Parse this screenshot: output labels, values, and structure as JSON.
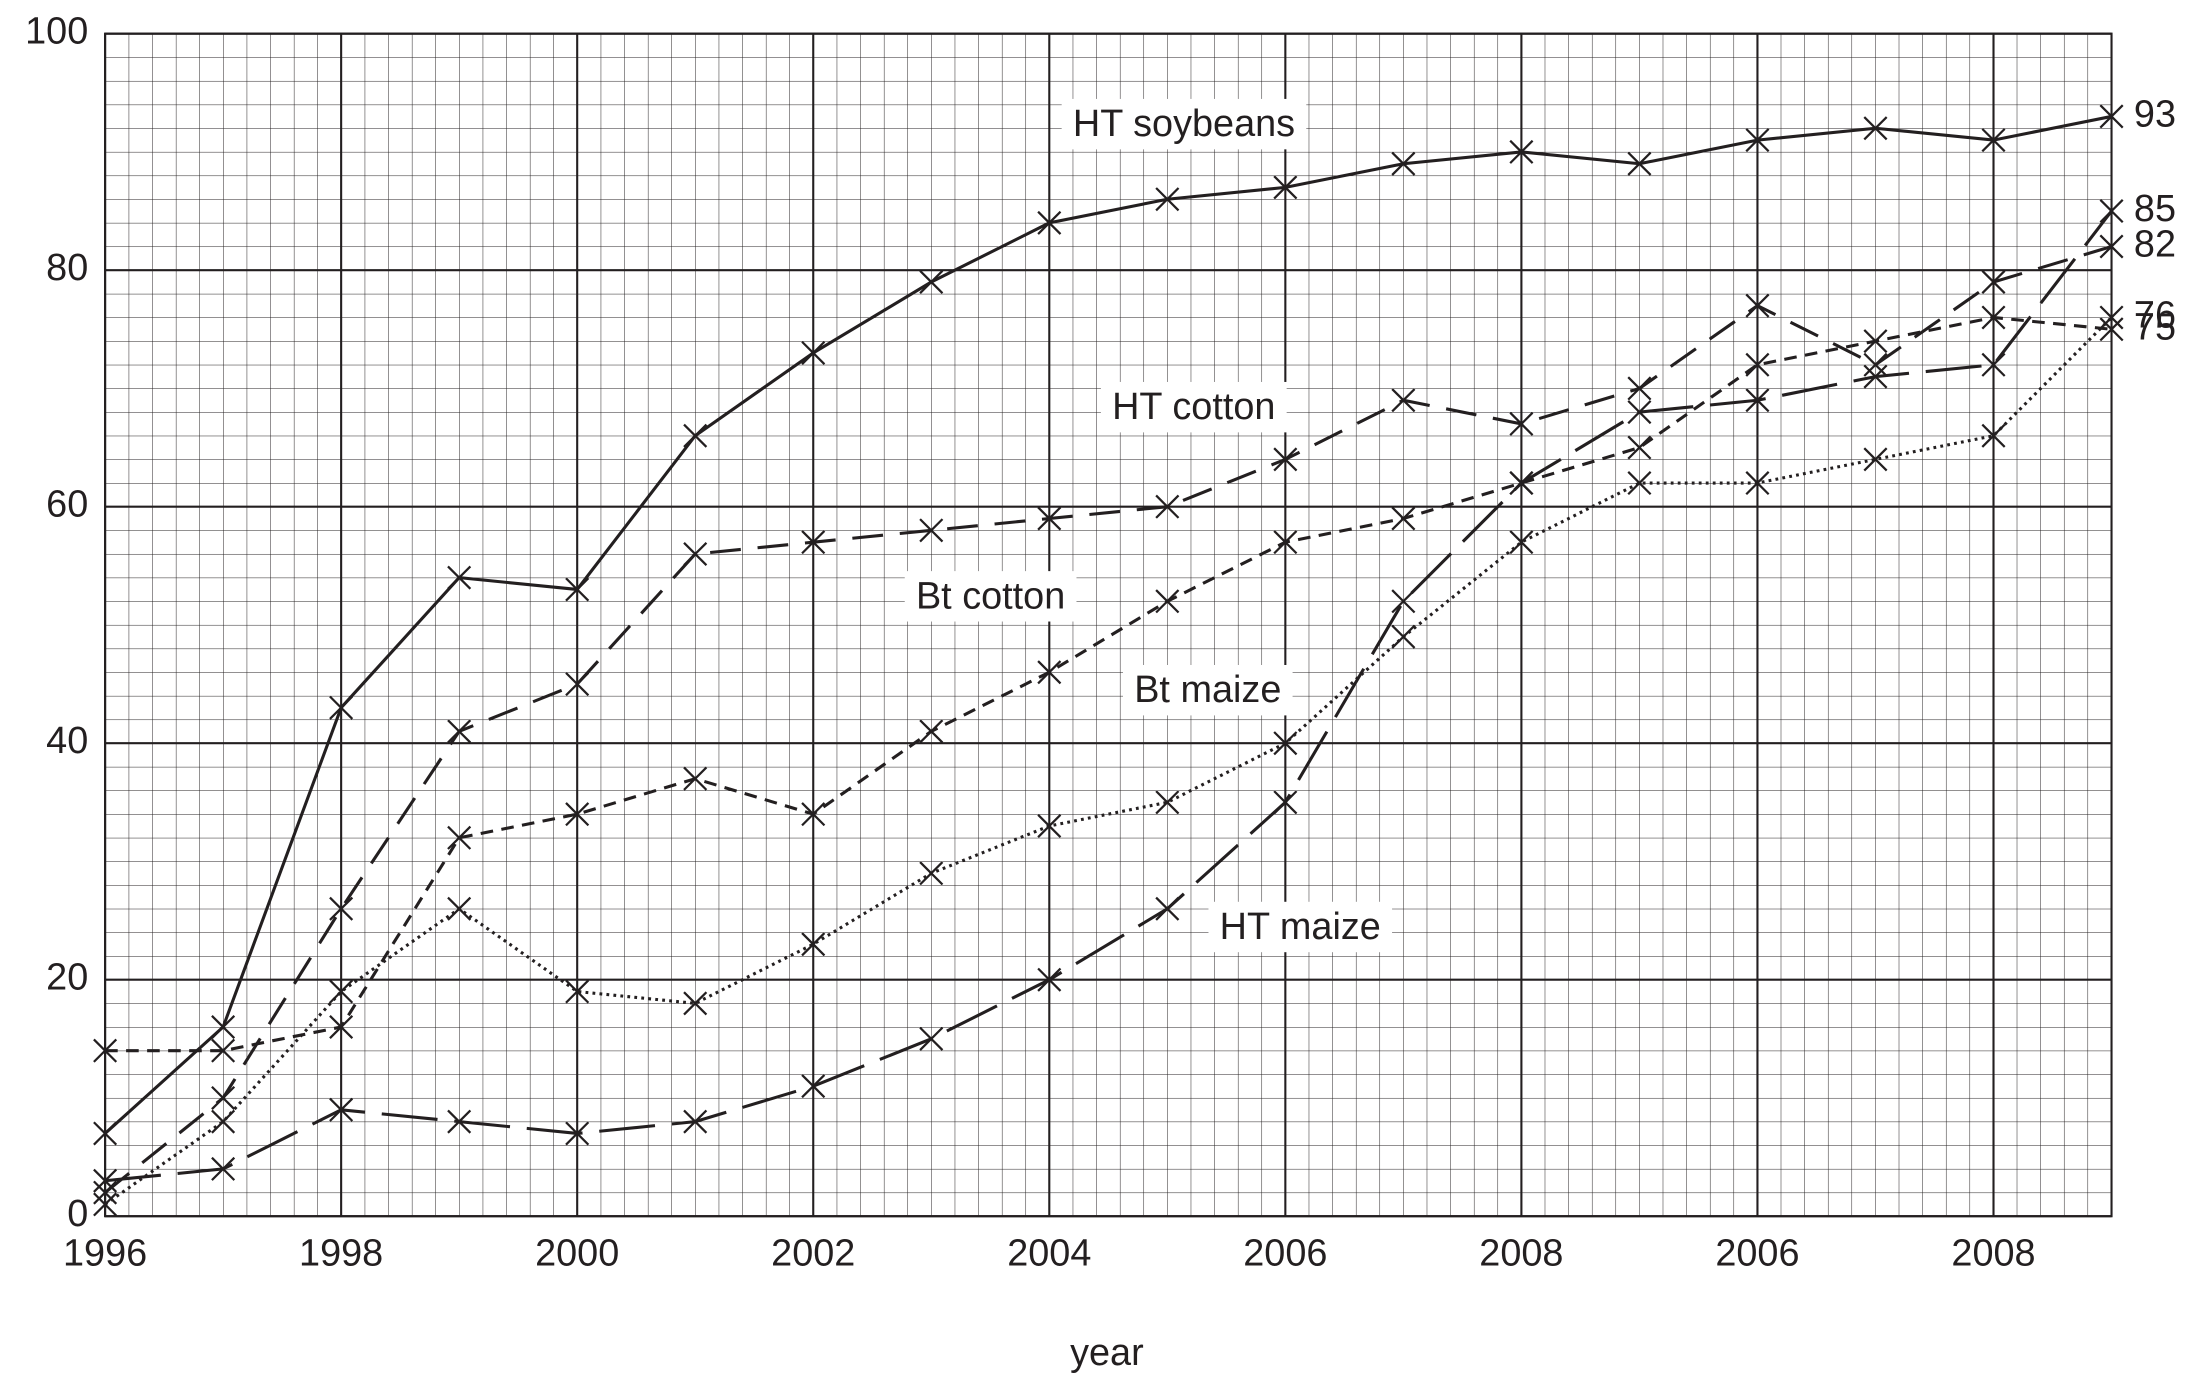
{
  "chart_data": {
    "type": "line",
    "x_label": "year",
    "categories": [
      "1996",
      null,
      "1998",
      null,
      "2000",
      null,
      "2002",
      null,
      "2004",
      null,
      "2006",
      null,
      "2008",
      null,
      "2006",
      null,
      "2008",
      null
    ],
    "ylim": [
      0,
      100
    ],
    "yticks": [
      0,
      20,
      40,
      60,
      80,
      100
    ],
    "grid": true,
    "series": [
      {
        "name": "HT soybeans",
        "color": "#231f20",
        "line_style": "solid",
        "values": [
          7,
          16,
          43,
          54,
          53,
          66,
          73,
          79,
          84,
          86,
          87,
          89,
          90,
          89,
          91,
          92,
          91,
          93
        ],
        "value_labels": [
          null,
          null,
          null,
          null,
          null,
          null,
          null,
          null,
          null,
          null,
          null,
          null,
          null,
          null,
          null,
          null,
          null,
          "93"
        ]
      },
      {
        "name": "HT cotton",
        "color": "#231f20",
        "line_style": "dashed",
        "values": [
          2,
          10,
          26,
          41,
          45,
          56,
          57,
          58,
          59,
          60,
          64,
          69,
          67,
          70,
          77,
          72,
          79,
          82
        ],
        "value_labels": [
          null,
          null,
          null,
          null,
          null,
          null,
          null,
          null,
          null,
          null,
          null,
          null,
          null,
          null,
          null,
          null,
          null,
          "82"
        ]
      },
      {
        "name": "Bt cotton",
        "color": "#231f20",
        "line_style": "short-dashed",
        "values": [
          14,
          14,
          16,
          32,
          34,
          37,
          34,
          41,
          46,
          52,
          57,
          59,
          62,
          65,
          72,
          74,
          76,
          75
        ],
        "value_labels": [
          null,
          null,
          null,
          null,
          null,
          null,
          null,
          null,
          null,
          null,
          null,
          null,
          null,
          null,
          null,
          null,
          null,
          "75"
        ]
      },
      {
        "name": "Bt maize",
        "color": "#231f20",
        "line_style": "dotted",
        "values": [
          1,
          8,
          19,
          26,
          19,
          18,
          23,
          29,
          33,
          35,
          40,
          49,
          57,
          62,
          62,
          64,
          66,
          76
        ],
        "value_labels": [
          null,
          null,
          null,
          null,
          null,
          null,
          null,
          null,
          null,
          null,
          null,
          null,
          null,
          null,
          null,
          null,
          null,
          "76"
        ]
      },
      {
        "name": "HT maize",
        "color": "#231f20",
        "line_style": "long-dashed",
        "values": [
          3,
          4,
          9,
          8,
          7,
          8,
          11,
          15,
          20,
          26,
          35,
          52,
          62,
          68,
          69,
          71,
          72,
          85
        ],
        "value_labels": [
          null,
          null,
          null,
          null,
          null,
          null,
          null,
          null,
          null,
          null,
          null,
          null,
          null,
          null,
          null,
          null,
          null,
          "85"
        ]
      }
    ]
  }
}
